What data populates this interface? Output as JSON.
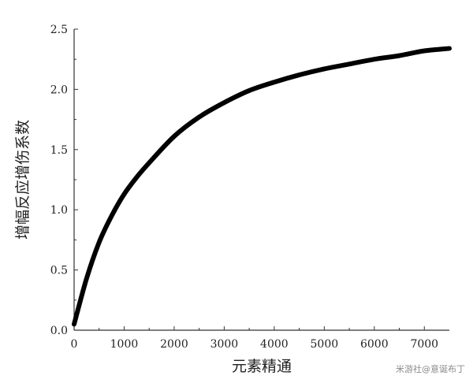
{
  "chart_data": {
    "type": "line",
    "title": "",
    "xlabel": "元素精通",
    "ylabel": "增幅反应增伤系数",
    "xlim": [
      0,
      7500
    ],
    "ylim": [
      0,
      2.5
    ],
    "x_ticks": [
      0,
      1000,
      2000,
      3000,
      4000,
      5000,
      6000,
      7000
    ],
    "y_ticks": [
      0.0,
      0.5,
      1.0,
      1.5,
      2.0,
      2.5
    ],
    "y_tick_labels": [
      "0.0",
      "0.5",
      "1.0",
      "1.5",
      "2.0",
      "2.5"
    ],
    "grid": false,
    "legend": "none",
    "line_color": "#000000",
    "series": [
      {
        "x": [
          0,
          250,
          500,
          750,
          1000,
          1250,
          1500,
          2000,
          2500,
          3000,
          3500,
          4000,
          4500,
          5000,
          5500,
          6000,
          6500,
          7000,
          7500
        ],
        "y": [
          0.05,
          0.43,
          0.73,
          0.95,
          1.13,
          1.27,
          1.39,
          1.61,
          1.77,
          1.89,
          1.99,
          2.06,
          2.12,
          2.17,
          2.21,
          2.25,
          2.28,
          2.32,
          2.34
        ]
      }
    ]
  },
  "watermark": "米游社@意诞布丁"
}
